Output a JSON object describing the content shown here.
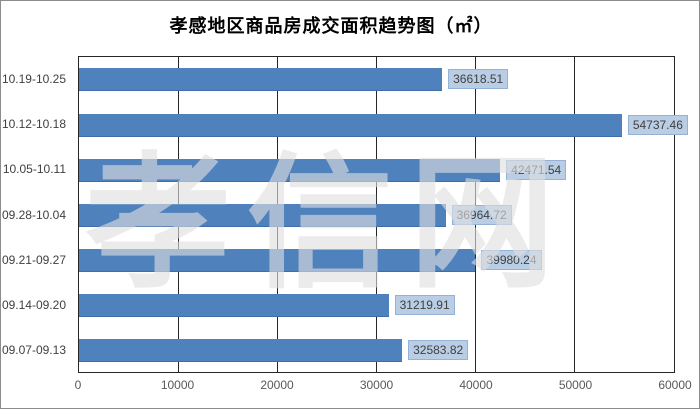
{
  "title": "孝感地区商品房成交面积趋势图（㎡）",
  "watermark": "孝信网",
  "chart_data": {
    "type": "bar",
    "orientation": "horizontal",
    "title": "孝感地区商品房成交面积趋势图（㎡）",
    "categories": [
      "10.19-10.25",
      "10.12-10.18",
      "10.05-10.11",
      "09.28-10.04",
      "09.21-09.27",
      "09.14-09.20",
      "09.07-09.13"
    ],
    "values": [
      36618.51,
      54737.46,
      42471.54,
      36964.72,
      39980.24,
      31219.91,
      32583.82
    ],
    "value_labels": [
      "36618.51",
      "54737.46",
      "42471.54",
      "36964.72",
      "39980.24",
      "31219.91",
      "32583.82"
    ],
    "xlim": [
      0,
      60000
    ],
    "x_ticks": [
      0,
      10000,
      20000,
      30000,
      40000,
      50000,
      60000
    ],
    "x_tick_labels": [
      "0",
      "10000",
      "20000",
      "30000",
      "40000",
      "50000",
      "60000"
    ],
    "grid": "vertical-major",
    "legend": "none",
    "colors": {
      "bar": "#4F81BD",
      "bar_bottom_edge": "#3E6DA9",
      "value_label_bg": "#B9CDE4",
      "value_label_border": "#94B2D6",
      "value_label_text": "#404040",
      "gridline": "#262626",
      "axis_text": "#595959",
      "category_text": "#404040"
    }
  }
}
